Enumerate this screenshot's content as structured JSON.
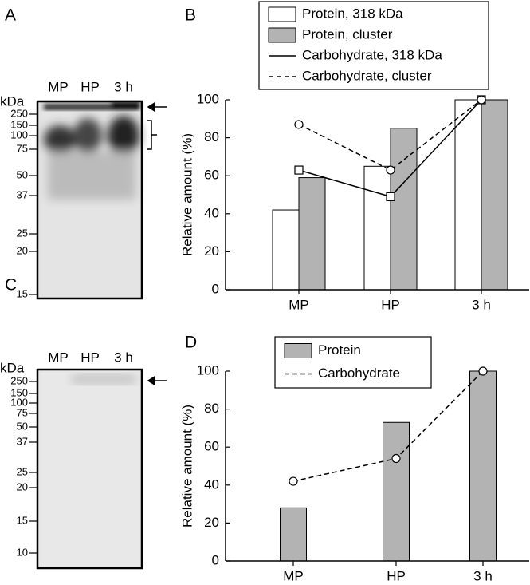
{
  "gels": [
    {
      "label": "A",
      "unit": "kDa",
      "lanes": [
        "MP",
        "HP",
        "3 h"
      ],
      "markers": [
        250,
        150,
        100,
        75,
        50,
        37,
        25,
        20,
        15
      ]
    },
    {
      "label": "C",
      "unit": "kDa",
      "lanes": [
        "MP",
        "HP",
        "3 h"
      ],
      "markers": [
        250,
        150,
        100,
        75,
        50,
        37,
        25,
        20,
        15,
        10
      ]
    }
  ],
  "chart_data": [
    {
      "type": "bar",
      "label": "B",
      "y_label": "Relative amount (%)",
      "categories": [
        "MP",
        "HP",
        "3 h"
      ],
      "ylim": [
        0,
        100
      ],
      "yticks": [
        0,
        20,
        40,
        60,
        80,
        100
      ],
      "series": [
        {
          "name": "Protein, 318 kDa",
          "kind": "bar",
          "color": "#ffffff",
          "values": [
            42,
            65,
            100
          ]
        },
        {
          "name": "Protein, cluster",
          "kind": "bar",
          "color": "#b3b3b3",
          "values": [
            59,
            85,
            100
          ]
        },
        {
          "name": "Carbohydrate, 318 kDa",
          "kind": "line",
          "dashed": false,
          "marker": "square",
          "color": "#000000",
          "values": [
            63,
            49,
            100
          ]
        },
        {
          "name": "Carbohydrate, cluster",
          "kind": "line",
          "dashed": true,
          "marker": "circle",
          "color": "#000000",
          "values": [
            87,
            63,
            100
          ]
        }
      ]
    },
    {
      "type": "bar",
      "label": "D",
      "y_label": "Relative amount (%)",
      "categories": [
        "MP",
        "HP",
        "3 h"
      ],
      "ylim": [
        0,
        100
      ],
      "yticks": [
        0,
        20,
        40,
        60,
        80,
        100
      ],
      "series": [
        {
          "name": "Protein",
          "kind": "bar",
          "color": "#b3b3b3",
          "values": [
            28,
            73,
            100
          ]
        },
        {
          "name": "Carbohydrate",
          "kind": "line",
          "dashed": true,
          "marker": "circle",
          "color": "#000000",
          "values": [
            42,
            54,
            100
          ]
        }
      ]
    }
  ]
}
